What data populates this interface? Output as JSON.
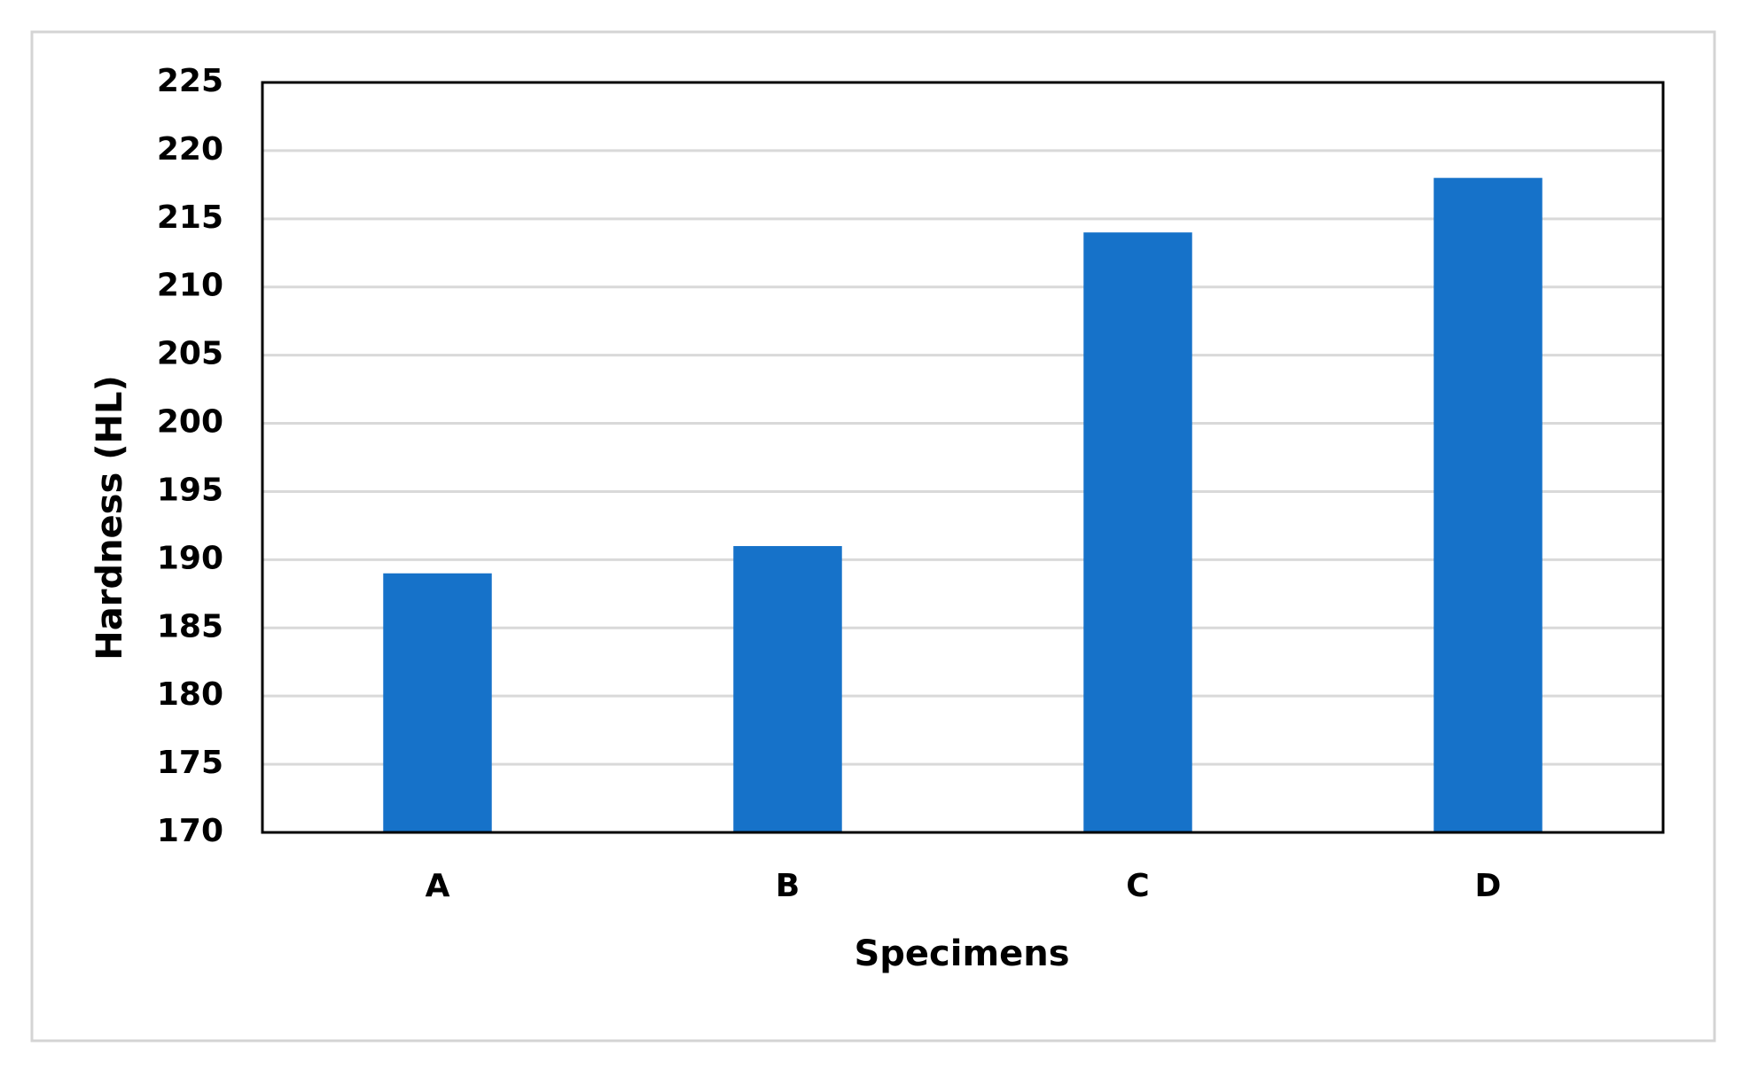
{
  "chart_data": {
    "type": "bar",
    "x_label": "Specimens",
    "y_label": "Hardness (HL)",
    "categories": [
      "A",
      "B",
      "C",
      "D"
    ],
    "values": [
      189,
      191,
      214,
      218
    ],
    "color": "#1672c9",
    "ylim": [
      170,
      225
    ],
    "yticks": [
      170,
      175,
      180,
      185,
      190,
      195,
      200,
      205,
      210,
      215,
      220,
      225
    ],
    "grid": true
  }
}
